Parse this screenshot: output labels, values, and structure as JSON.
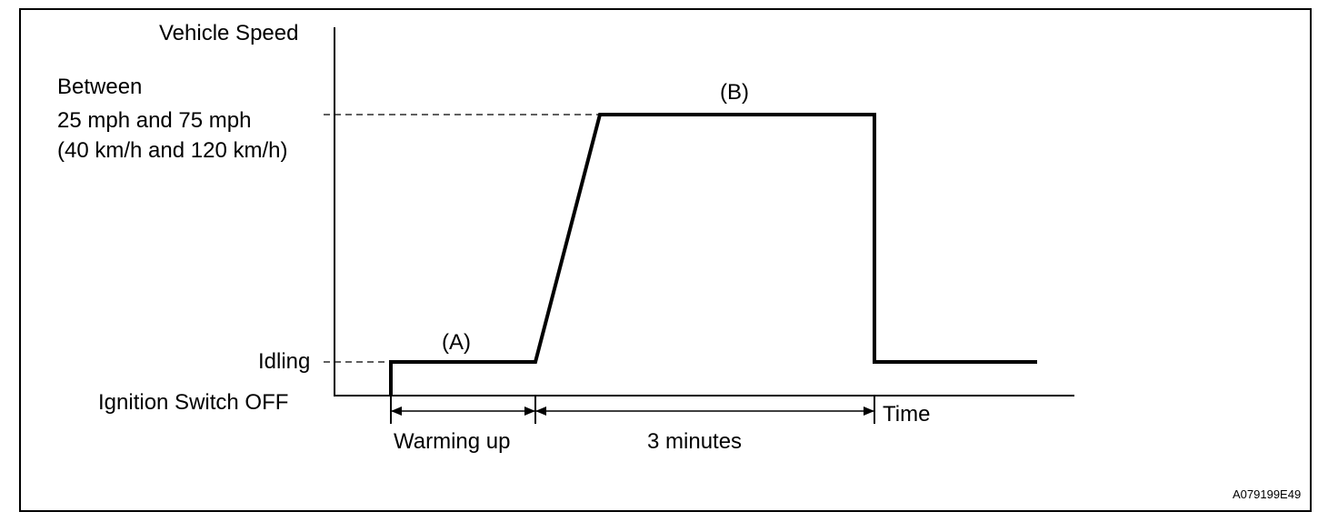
{
  "diagram": {
    "y_axis_label": "Vehicle Speed",
    "speed_range": {
      "line1": "Between",
      "line2": "25 mph and 75 mph",
      "line3": "(40 km/h and 120 km/h)"
    },
    "idling_label": "Idling",
    "ignition_off_label": "Ignition Switch OFF",
    "x_axis_label": "Time",
    "phase_a_label": "(A)",
    "phase_b_label": "(B)",
    "warming_up_label": "Warming up",
    "duration_label": "3 minutes",
    "figure_code": "A079199E49"
  }
}
